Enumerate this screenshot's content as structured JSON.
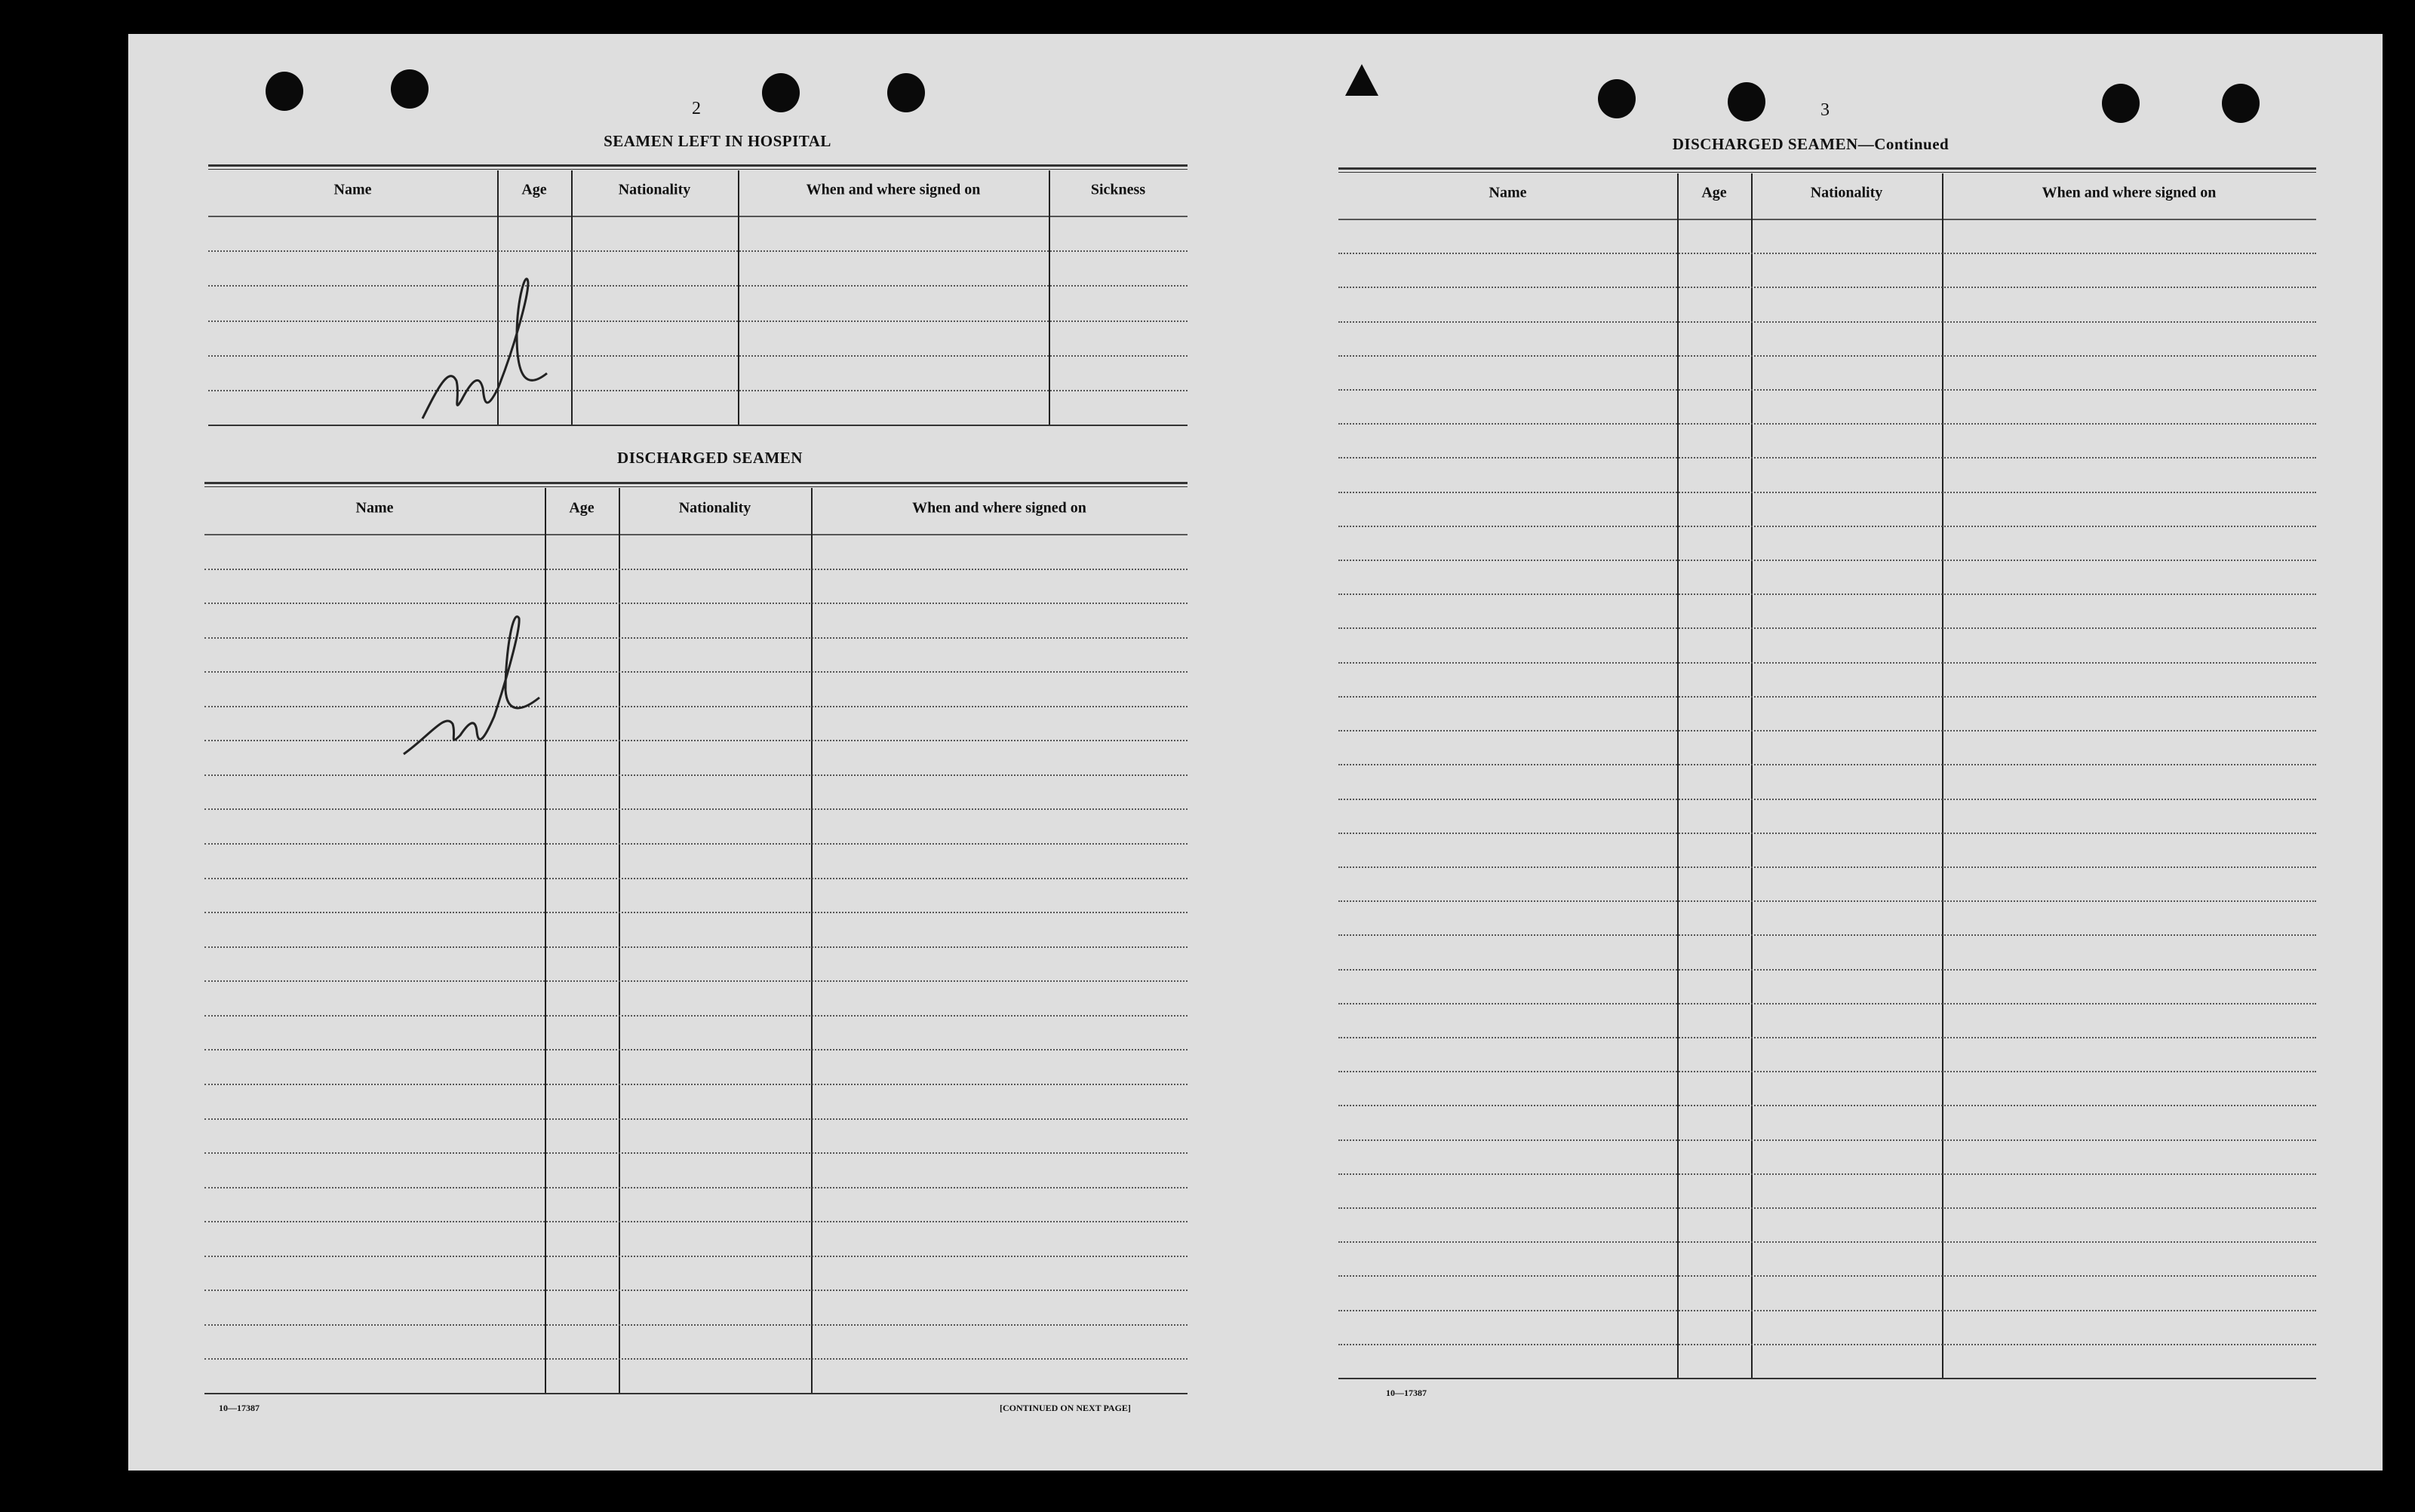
{
  "left_page": {
    "page_number": "2",
    "hospital_table": {
      "title": "SEAMEN LEFT IN HOSPITAL",
      "columns": [
        "Name",
        "Age",
        "Nationality",
        "When and where signed on",
        "Sickness"
      ],
      "handwritten_entry": "nil"
    },
    "discharged_table": {
      "title": "DISCHARGED SEAMEN",
      "columns": [
        "Name",
        "Age",
        "Nationality",
        "When and where signed on"
      ],
      "handwritten_entry": "nil"
    },
    "form_number": "10—17387",
    "continued_note": "[CONTINUED ON NEXT PAGE]"
  },
  "right_page": {
    "page_number": "3",
    "discharged_table": {
      "title": "DISCHARGED SEAMEN—Continued",
      "columns": [
        "Name",
        "Age",
        "Nationality",
        "When and where signed on"
      ]
    },
    "form_number": "10—17387"
  }
}
